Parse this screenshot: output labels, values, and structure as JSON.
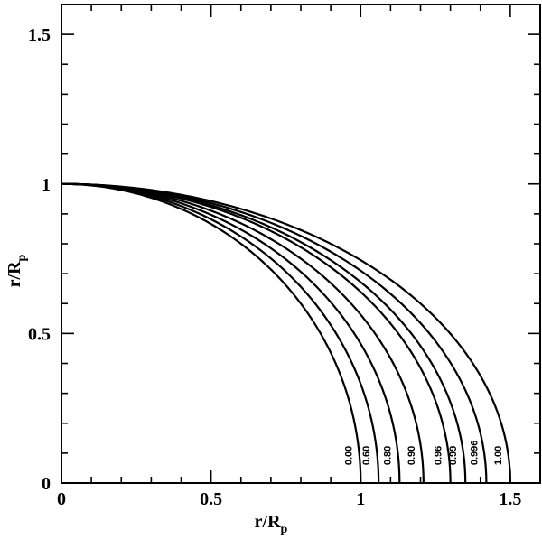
{
  "chart_data": {
    "type": "line",
    "xlabel": "r/R",
    "xlabel_sub": "p",
    "ylabel": "r/R",
    "ylabel_sub": "p",
    "xlim": [
      0,
      1.6
    ],
    "ylim": [
      0,
      1.6
    ],
    "xticks": [
      {
        "value": 0,
        "label": "0"
      },
      {
        "value": 0.5,
        "label": "0.5"
      },
      {
        "value": 1,
        "label": "1"
      },
      {
        "value": 1.5,
        "label": "1.5"
      }
    ],
    "yticks": [
      {
        "value": 0,
        "label": "0"
      },
      {
        "value": 0.5,
        "label": "0.5"
      },
      {
        "value": 1,
        "label": "1"
      },
      {
        "value": 1.5,
        "label": "1.5"
      }
    ],
    "series": [
      {
        "name": "0.00",
        "equatorial_radius": 1.0
      },
      {
        "name": "0.60",
        "equatorial_radius": 1.06
      },
      {
        "name": "0.80",
        "equatorial_radius": 1.13
      },
      {
        "name": "0.90",
        "equatorial_radius": 1.21
      },
      {
        "name": "0.96",
        "equatorial_radius": 1.3
      },
      {
        "name": "0.99",
        "equatorial_radius": 1.35
      },
      {
        "name": "0.996",
        "equatorial_radius": 1.42
      },
      {
        "name": "1.00",
        "equatorial_radius": 1.5
      }
    ]
  }
}
